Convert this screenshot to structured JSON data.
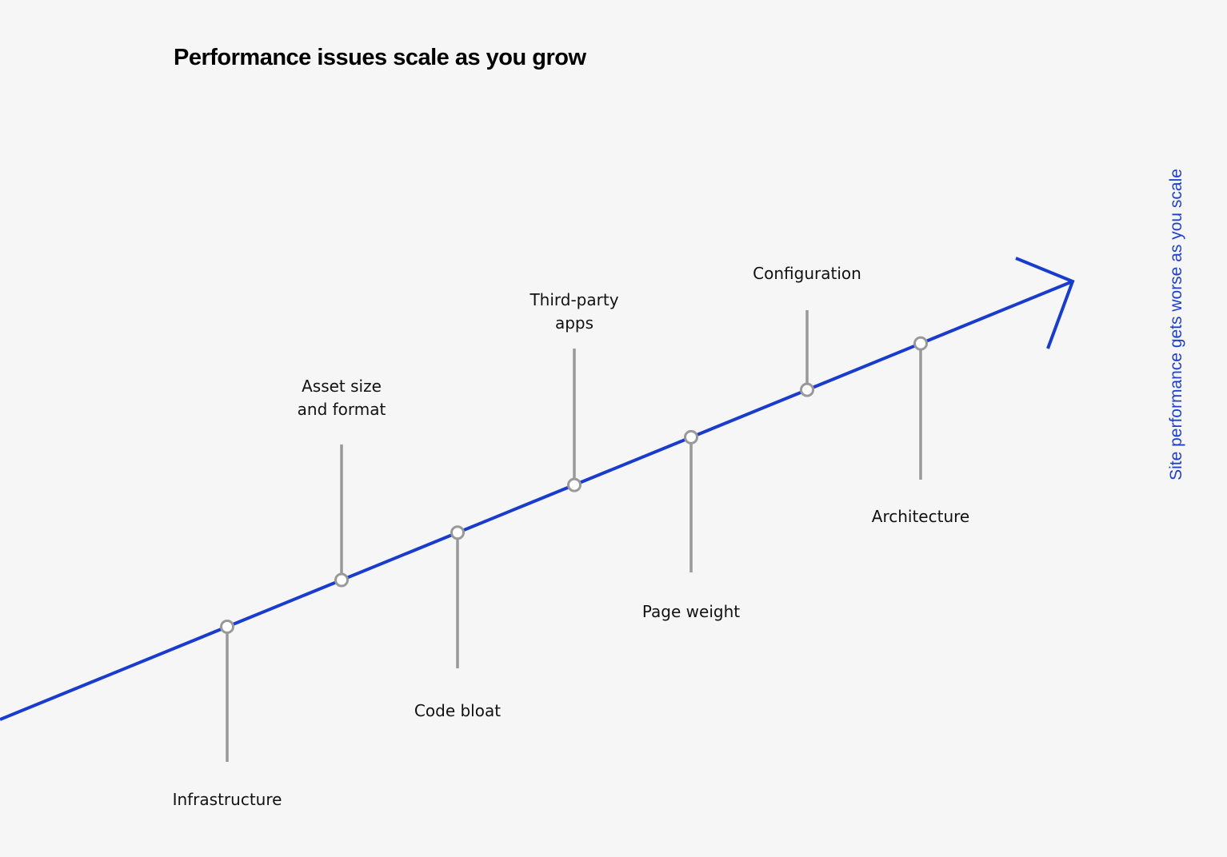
{
  "title": "Performance issues scale as you grow",
  "side_label": "Site performance gets worse as you scale",
  "colors": {
    "line": "#1a3ccc",
    "stem": "#999999",
    "node_fill": "#ffffff",
    "background": "#f6f6f6"
  },
  "milestones": [
    {
      "label": [
        "Infrastructure"
      ],
      "side": "below"
    },
    {
      "label": [
        "Asset size",
        "and format"
      ],
      "side": "above"
    },
    {
      "label": [
        "Code bloat"
      ],
      "side": "below"
    },
    {
      "label": [
        "Third-party",
        "apps"
      ],
      "side": "above"
    },
    {
      "label": [
        "Page weight"
      ],
      "side": "below"
    },
    {
      "label": [
        "Configuration"
      ],
      "side": "above"
    },
    {
      "label": [
        "Architecture"
      ],
      "side": "below"
    }
  ]
}
